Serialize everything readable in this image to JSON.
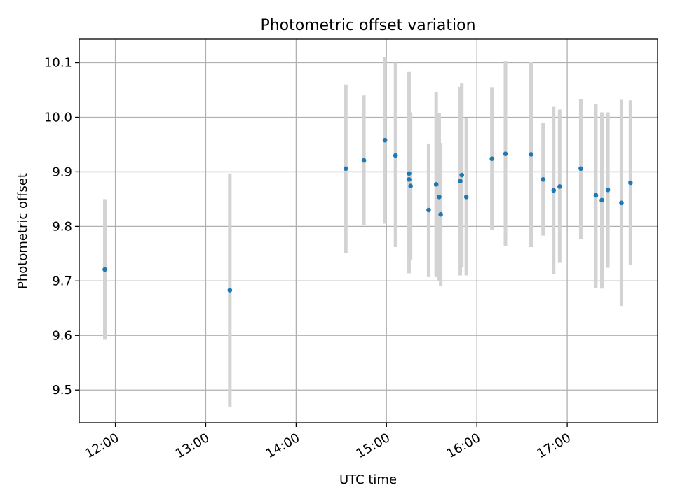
{
  "chart_data": {
    "type": "scatter",
    "title": "Photometric offset variation",
    "xlabel": "UTC time",
    "ylabel": "Photometric offset",
    "x_range": [
      "11:36",
      "18:00"
    ],
    "ylim": [
      9.44,
      10.143
    ],
    "x_ticks": [
      "12:00",
      "13:00",
      "14:00",
      "15:00",
      "16:00",
      "17:00"
    ],
    "y_ticks": [
      9.5,
      9.6,
      9.7,
      9.8,
      9.9,
      10.0,
      10.1
    ],
    "grid": true,
    "colors": {
      "point": "#1f77b4",
      "errorbar": "#d3d3d3",
      "grid": "#b0b0b0"
    },
    "points": [
      {
        "x": "11:53",
        "y": 9.721,
        "yerr_low": 9.592,
        "yerr_high": 9.85
      },
      {
        "x": "13:16",
        "y": 9.683,
        "yerr_low": 9.469,
        "yerr_high": 9.897
      },
      {
        "x": "14:33",
        "y": 9.906,
        "yerr_low": 9.751,
        "yerr_high": 10.06
      },
      {
        "x": "14:45",
        "y": 9.921,
        "yerr_low": 9.802,
        "yerr_high": 10.04
      },
      {
        "x": "14:59",
        "y": 9.958,
        "yerr_low": 9.805,
        "yerr_high": 10.11
      },
      {
        "x": "15:06",
        "y": 9.93,
        "yerr_low": 9.762,
        "yerr_high": 10.1
      },
      {
        "x": "15:15",
        "y": 9.897,
        "yerr_low": 9.714,
        "yerr_high": 10.083
      },
      {
        "x": "15:15",
        "y": 9.886,
        "yerr_low": 9.714,
        "yerr_high": 10.056
      },
      {
        "x": "15:16",
        "y": 9.874,
        "yerr_low": 9.738,
        "yerr_high": 10.009
      },
      {
        "x": "15:28",
        "y": 9.83,
        "yerr_low": 9.707,
        "yerr_high": 9.952
      },
      {
        "x": "15:33",
        "y": 9.877,
        "yerr_low": 9.707,
        "yerr_high": 10.047
      },
      {
        "x": "15:35",
        "y": 9.854,
        "yerr_low": 9.7,
        "yerr_high": 10.008
      },
      {
        "x": "15:36",
        "y": 9.822,
        "yerr_low": 9.69,
        "yerr_high": 9.953
      },
      {
        "x": "15:49",
        "y": 9.883,
        "yerr_low": 9.71,
        "yerr_high": 10.056
      },
      {
        "x": "15:50",
        "y": 9.894,
        "yerr_low": 9.726,
        "yerr_high": 10.062
      },
      {
        "x": "15:53",
        "y": 9.854,
        "yerr_low": 9.71,
        "yerr_high": 9.999
      },
      {
        "x": "16:10",
        "y": 9.924,
        "yerr_low": 9.793,
        "yerr_high": 10.054
      },
      {
        "x": "16:19",
        "y": 9.933,
        "yerr_low": 9.764,
        "yerr_high": 10.103
      },
      {
        "x": "16:36",
        "y": 9.932,
        "yerr_low": 9.762,
        "yerr_high": 10.101
      },
      {
        "x": "16:44",
        "y": 9.886,
        "yerr_low": 9.783,
        "yerr_high": 9.989
      },
      {
        "x": "16:51",
        "y": 9.866,
        "yerr_low": 9.713,
        "yerr_high": 10.019
      },
      {
        "x": "16:55",
        "y": 9.873,
        "yerr_low": 9.733,
        "yerr_high": 10.014
      },
      {
        "x": "17:09",
        "y": 9.906,
        "yerr_low": 9.777,
        "yerr_high": 10.034
      },
      {
        "x": "17:19",
        "y": 9.857,
        "yerr_low": 9.687,
        "yerr_high": 10.024
      },
      {
        "x": "17:23",
        "y": 9.848,
        "yerr_low": 9.686,
        "yerr_high": 10.009
      },
      {
        "x": "17:27",
        "y": 9.867,
        "yerr_low": 9.724,
        "yerr_high": 10.009
      },
      {
        "x": "17:36",
        "y": 9.843,
        "yerr_low": 9.654,
        "yerr_high": 10.032
      },
      {
        "x": "17:42",
        "y": 9.88,
        "yerr_low": 9.729,
        "yerr_high": 10.031
      }
    ]
  }
}
